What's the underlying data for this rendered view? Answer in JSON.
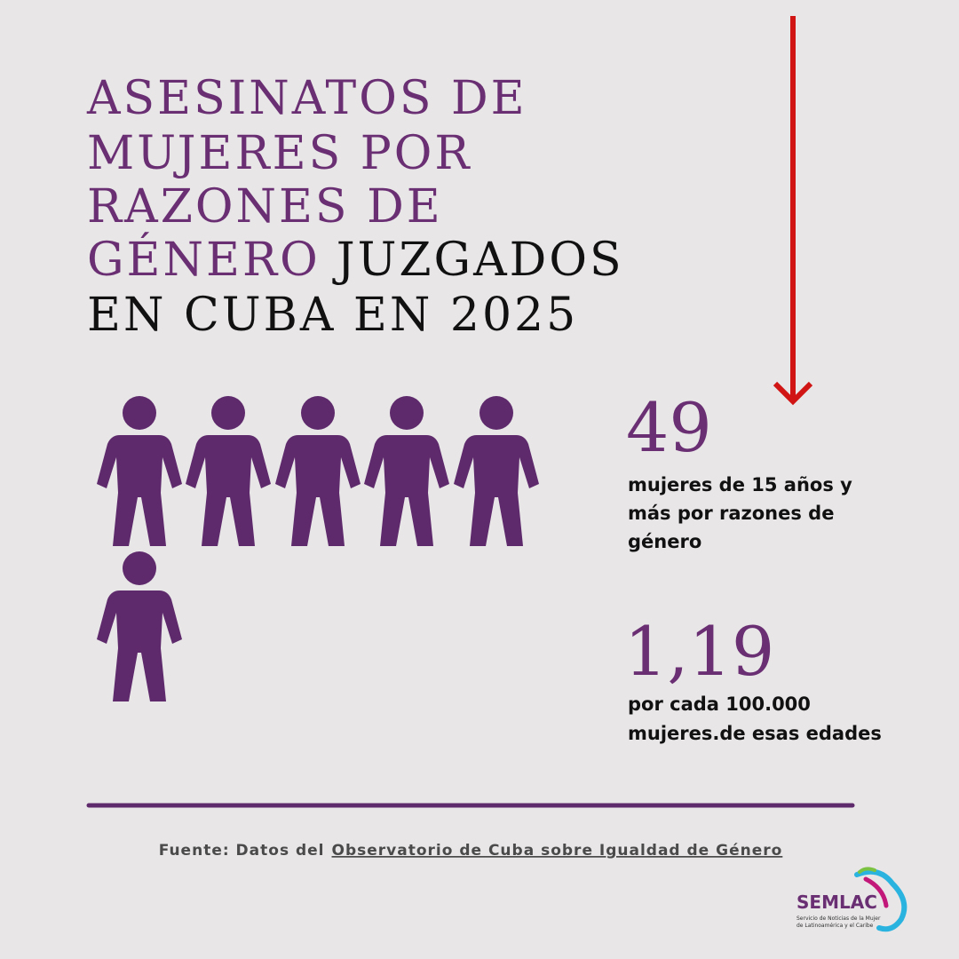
{
  "title": {
    "purple_lines": [
      "ASESINATOS DE",
      "MUJERES POR",
      "RAZONES DE",
      "GÉNERO"
    ],
    "dark_lines": [
      "JUZGADOS",
      "EN CUBA EN 2025"
    ]
  },
  "stats": [
    {
      "number": "49",
      "lines": [
        "mujeres de 15 años y",
        "más por razones de",
        "género"
      ]
    },
    {
      "number": "1,19",
      "lines": [
        "por cada 100.000",
        "mujeres.de esas edades"
      ]
    }
  ],
  "source": {
    "prefix": "Fuente: Datos del",
    "link": "Observatorio de Cuba sobre Igualdad de Género"
  },
  "logo": {
    "name": "SEMLAC",
    "tagline": [
      "Servicio de Noticias de la Mujer",
      "de Latinoamérica y el Caribe"
    ]
  }
}
